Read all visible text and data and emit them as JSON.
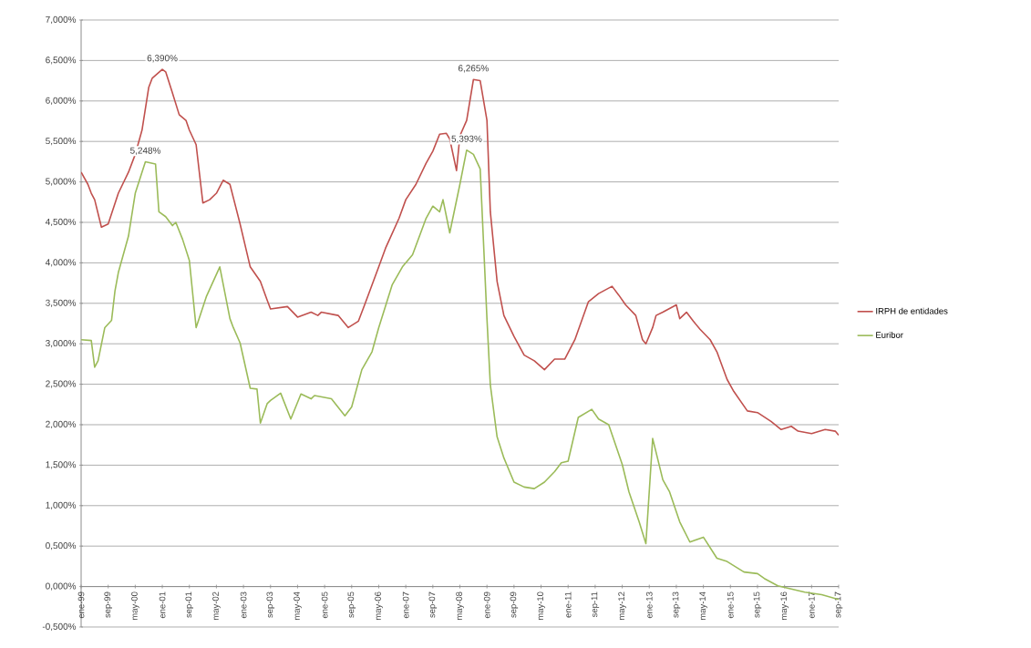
{
  "chart_data": {
    "type": "line",
    "xlim": [
      "1999-01",
      "2017-09"
    ],
    "xticks": [
      {
        "value": "1999-01",
        "label": "ene-99"
      },
      {
        "value": "1999-09",
        "label": "sep-99"
      },
      {
        "value": "2000-05",
        "label": "may-00"
      },
      {
        "value": "2001-01",
        "label": "ene-01"
      },
      {
        "value": "2001-09",
        "label": "sep-01"
      },
      {
        "value": "2002-05",
        "label": "may-02"
      },
      {
        "value": "2003-01",
        "label": "ene-03"
      },
      {
        "value": "2003-09",
        "label": "sep-03"
      },
      {
        "value": "2004-05",
        "label": "may-04"
      },
      {
        "value": "2005-01",
        "label": "ene-05"
      },
      {
        "value": "2005-09",
        "label": "sep-05"
      },
      {
        "value": "2006-05",
        "label": "may-06"
      },
      {
        "value": "2007-01",
        "label": "ene-07"
      },
      {
        "value": "2007-09",
        "label": "sep-07"
      },
      {
        "value": "2008-05",
        "label": "may-08"
      },
      {
        "value": "2009-01",
        "label": "ene-09"
      },
      {
        "value": "2009-09",
        "label": "sep-09"
      },
      {
        "value": "2010-05",
        "label": "may-10"
      },
      {
        "value": "2011-01",
        "label": "ene-11"
      },
      {
        "value": "2011-09",
        "label": "sep-11"
      },
      {
        "value": "2012-05",
        "label": "may-12"
      },
      {
        "value": "2013-01",
        "label": "ene-13"
      },
      {
        "value": "2013-09",
        "label": "sep-13"
      },
      {
        "value": "2014-05",
        "label": "may-14"
      },
      {
        "value": "2015-01",
        "label": "ene-15"
      },
      {
        "value": "2015-09",
        "label": "sep-15"
      },
      {
        "value": "2016-05",
        "label": "may-16"
      },
      {
        "value": "2017-01",
        "label": "ene-17"
      },
      {
        "value": "2017-09",
        "label": "sep-17"
      }
    ],
    "ylim": [
      -0.5,
      7
    ],
    "yticks": [
      {
        "value": -0.5,
        "label": "-0,500%"
      },
      {
        "value": 0,
        "label": "0,000%"
      },
      {
        "value": 0.5,
        "label": "0,500%"
      },
      {
        "value": 1,
        "label": "1,000%"
      },
      {
        "value": 1.5,
        "label": "1,500%"
      },
      {
        "value": 2,
        "label": "2,000%"
      },
      {
        "value": 2.5,
        "label": "2,500%"
      },
      {
        "value": 3,
        "label": "3,000%"
      },
      {
        "value": 3.5,
        "label": "3,500%"
      },
      {
        "value": 4,
        "label": "4,000%"
      },
      {
        "value": 4.5,
        "label": "4,500%"
      },
      {
        "value": 5,
        "label": "5,000%"
      },
      {
        "value": 5.5,
        "label": "5,500%"
      },
      {
        "value": 6,
        "label": "6,000%"
      },
      {
        "value": 6.5,
        "label": "6,500%"
      },
      {
        "value": 7,
        "label": "7,000%"
      }
    ],
    "grid": "y",
    "legend": "right",
    "marker": "none",
    "line_style": "solid",
    "series": [
      {
        "name": "IRPH de entidades",
        "color": "#c0504d",
        "x": [
          "1999-01",
          "1999-03",
          "1999-04",
          "1999-05",
          "1999-07",
          "1999-09",
          "1999-12",
          "2000-03",
          "2000-05",
          "2000-07",
          "2000-09",
          "2000-10",
          "2001-01",
          "2001-02",
          "2001-04",
          "2001-06",
          "2001-08",
          "2001-09",
          "2001-11",
          "2002-01",
          "2002-03",
          "2002-05",
          "2002-07",
          "2002-09",
          "2002-12",
          "2003-03",
          "2003-06",
          "2003-08",
          "2003-09",
          "2004-02",
          "2004-05",
          "2004-09",
          "2004-11",
          "2004-12",
          "2005-05",
          "2005-08",
          "2005-11",
          "2006-01",
          "2006-05",
          "2006-07",
          "2006-11",
          "2007-01",
          "2007-04",
          "2007-07",
          "2007-09",
          "2007-11",
          "2008-01",
          "2008-02",
          "2008-04",
          "2008-05",
          "2008-07",
          "2008-09",
          "2008-11",
          "2009-01",
          "2009-02",
          "2009-04",
          "2009-06",
          "2009-09",
          "2009-12",
          "2010-03",
          "2010-06",
          "2010-09",
          "2010-12",
          "2011-03",
          "2011-07",
          "2011-10",
          "2012-02",
          "2012-04",
          "2012-06",
          "2012-09",
          "2012-11",
          "2012-12",
          "2013-02",
          "2013-03",
          "2013-05",
          "2013-09",
          "2013-10",
          "2013-12",
          "2014-02",
          "2014-04",
          "2014-07",
          "2014-09",
          "2014-12",
          "2015-02",
          "2015-06",
          "2015-09",
          "2016-01",
          "2016-04",
          "2016-07",
          "2016-09",
          "2017-01",
          "2017-05",
          "2017-08",
          "2017-09"
        ],
        "values": [
          5.12,
          4.97,
          4.86,
          4.78,
          4.44,
          4.48,
          4.86,
          5.12,
          5.34,
          5.64,
          6.17,
          6.28,
          6.39,
          6.36,
          6.1,
          5.83,
          5.76,
          5.64,
          5.46,
          4.74,
          4.78,
          4.86,
          5.02,
          4.97,
          4.48,
          3.95,
          3.77,
          3.54,
          3.43,
          3.46,
          3.33,
          3.39,
          3.35,
          3.39,
          3.35,
          3.2,
          3.28,
          3.5,
          3.95,
          4.18,
          4.55,
          4.78,
          4.97,
          5.23,
          5.38,
          5.59,
          5.6,
          5.53,
          5.14,
          5.57,
          5.76,
          6.265,
          6.25,
          5.76,
          4.63,
          3.77,
          3.35,
          3.09,
          2.86,
          2.79,
          2.68,
          2.81,
          2.81,
          3.05,
          3.52,
          3.62,
          3.71,
          3.6,
          3.48,
          3.35,
          3.05,
          3.0,
          3.2,
          3.35,
          3.39,
          3.48,
          3.31,
          3.39,
          3.28,
          3.18,
          3.05,
          2.9,
          2.56,
          2.41,
          2.17,
          2.15,
          2.04,
          1.94,
          1.98,
          1.92,
          1.89,
          1.94,
          1.92,
          1.87
        ]
      },
      {
        "name": "Euribor",
        "color": "#9bbb59",
        "x": [
          "1999-01",
          "1999-04",
          "1999-05",
          "1999-06",
          "1999-08",
          "1999-10",
          "1999-11",
          "1999-12",
          "2000-03",
          "2000-05",
          "2000-08",
          "2000-11",
          "2000-12",
          "2001-02",
          "2001-04",
          "2001-05",
          "2001-07",
          "2001-09",
          "2001-11",
          "2002-02",
          "2002-06",
          "2002-09",
          "2002-10",
          "2002-12",
          "2003-03",
          "2003-05",
          "2003-06",
          "2003-08",
          "2003-09",
          "2003-12",
          "2004-03",
          "2004-06",
          "2004-09",
          "2004-10",
          "2005-03",
          "2005-07",
          "2005-09",
          "2005-12",
          "2006-03",
          "2006-05",
          "2006-09",
          "2006-12",
          "2007-03",
          "2007-07",
          "2007-09",
          "2007-11",
          "2007-12",
          "2008-02",
          "2008-05",
          "2008-07",
          "2008-09",
          "2008-11",
          "2009-01",
          "2009-02",
          "2009-04",
          "2009-06",
          "2009-09",
          "2009-12",
          "2010-03",
          "2010-06",
          "2010-09",
          "2010-11",
          "2011-01",
          "2011-04",
          "2011-08",
          "2011-10",
          "2012-01",
          "2012-05",
          "2012-07",
          "2012-10",
          "2012-12",
          "2013-02",
          "2013-05",
          "2013-07",
          "2013-10",
          "2014-01",
          "2014-05",
          "2014-09",
          "2014-12",
          "2015-05",
          "2015-09",
          "2015-11",
          "2016-03",
          "2016-05",
          "2016-11",
          "2017-04",
          "2017-09"
        ],
        "values": [
          3.05,
          3.04,
          2.71,
          2.79,
          3.2,
          3.29,
          3.65,
          3.88,
          4.33,
          4.86,
          5.248,
          5.22,
          4.63,
          4.57,
          4.46,
          4.5,
          4.29,
          4.03,
          3.2,
          3.58,
          3.95,
          3.31,
          3.2,
          3.01,
          2.45,
          2.44,
          2.02,
          2.26,
          2.3,
          2.39,
          2.07,
          2.38,
          2.32,
          2.36,
          2.32,
          2.11,
          2.22,
          2.68,
          2.9,
          3.2,
          3.73,
          3.95,
          4.1,
          4.55,
          4.7,
          4.63,
          4.78,
          4.37,
          4.97,
          5.393,
          5.34,
          5.16,
          3.31,
          2.49,
          1.85,
          1.59,
          1.29,
          1.23,
          1.21,
          1.29,
          1.42,
          1.53,
          1.55,
          2.09,
          2.19,
          2.07,
          2.0,
          1.51,
          1.17,
          0.8,
          0.53,
          1.83,
          1.32,
          1.17,
          0.8,
          0.55,
          0.61,
          0.35,
          0.31,
          0.18,
          0.16,
          0.1,
          0.01,
          -0.01,
          -0.07,
          -0.1,
          -0.16
        ]
      }
    ],
    "annotations": [
      {
        "text": "6,390%",
        "x": "2001-01",
        "y": 6.39
      },
      {
        "text": "5,248%",
        "x": "2000-08",
        "y": 5.248
      },
      {
        "text": "6,265%",
        "x": "2008-09",
        "y": 6.265
      },
      {
        "text": "5,393%",
        "x": "2008-07",
        "y": 5.393
      }
    ]
  }
}
